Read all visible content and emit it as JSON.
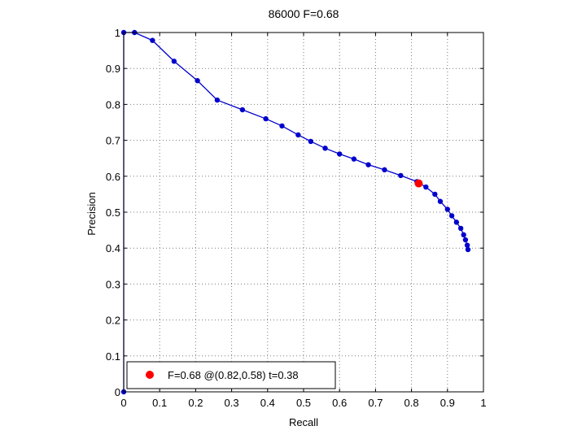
{
  "chart_data": {
    "type": "line",
    "title": "86000 F=0.68",
    "xlabel": "Recall",
    "ylabel": "Precision",
    "xlim": [
      0,
      1
    ],
    "ylim": [
      0,
      1
    ],
    "xticks": [
      "0",
      "0.1",
      "0.2",
      "0.3",
      "0.4",
      "0.5",
      "0.6",
      "0.7",
      "0.8",
      "0.9",
      "1"
    ],
    "yticks": [
      "0",
      "0.1",
      "0.2",
      "0.3",
      "0.4",
      "0.5",
      "0.6",
      "0.7",
      "0.8",
      "0.9",
      "1"
    ],
    "grid": true,
    "series": [
      {
        "color": "#0000cc",
        "points": [
          [
            0.0,
            0.0
          ],
          [
            0.0,
            1.0
          ],
          [
            0.03,
            1.0
          ],
          [
            0.08,
            0.978
          ],
          [
            0.14,
            0.92
          ],
          [
            0.205,
            0.866
          ],
          [
            0.26,
            0.812
          ],
          [
            0.33,
            0.785
          ],
          [
            0.395,
            0.76
          ],
          [
            0.44,
            0.74
          ],
          [
            0.485,
            0.715
          ],
          [
            0.52,
            0.697
          ],
          [
            0.56,
            0.678
          ],
          [
            0.6,
            0.662
          ],
          [
            0.64,
            0.648
          ],
          [
            0.68,
            0.632
          ],
          [
            0.725,
            0.618
          ],
          [
            0.77,
            0.602
          ],
          [
            0.815,
            0.585
          ],
          [
            0.84,
            0.57
          ],
          [
            0.865,
            0.55
          ],
          [
            0.88,
            0.53
          ],
          [
            0.9,
            0.508
          ],
          [
            0.912,
            0.49
          ],
          [
            0.925,
            0.472
          ],
          [
            0.937,
            0.455
          ],
          [
            0.945,
            0.437
          ],
          [
            0.95,
            0.423
          ],
          [
            0.955,
            0.408
          ],
          [
            0.957,
            0.396
          ]
        ]
      }
    ],
    "highlight": {
      "x": 0.82,
      "y": 0.58,
      "color": "#ff0000"
    },
    "legend": {
      "position": "bottom-left",
      "text": "F=0.68 @(0.82,0.58) t=0.38"
    }
  }
}
